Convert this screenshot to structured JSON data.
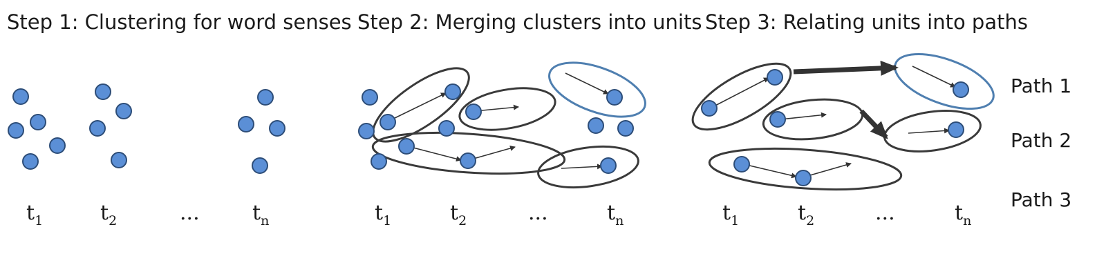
{
  "steps": [
    {
      "title": "Step 1: Clustering for word senses"
    },
    {
      "title": "Step 2: Merging clusters into units"
    },
    {
      "title": "Step 3: Relating units into paths"
    }
  ],
  "time_labels": [
    {
      "base": "t",
      "sub": "1"
    },
    {
      "base": "t",
      "sub": "2"
    },
    {
      "base": "...",
      "sub": ""
    },
    {
      "base": "t",
      "sub": "n"
    }
  ],
  "paths": [
    "Path 1",
    "Path 2",
    "Path 3"
  ],
  "colors": {
    "dot_fill": "#5b8fd6",
    "cluster_outline": "#3a3a3a",
    "highlight_outline": "#4f7fb0",
    "arrow": "#333333"
  }
}
